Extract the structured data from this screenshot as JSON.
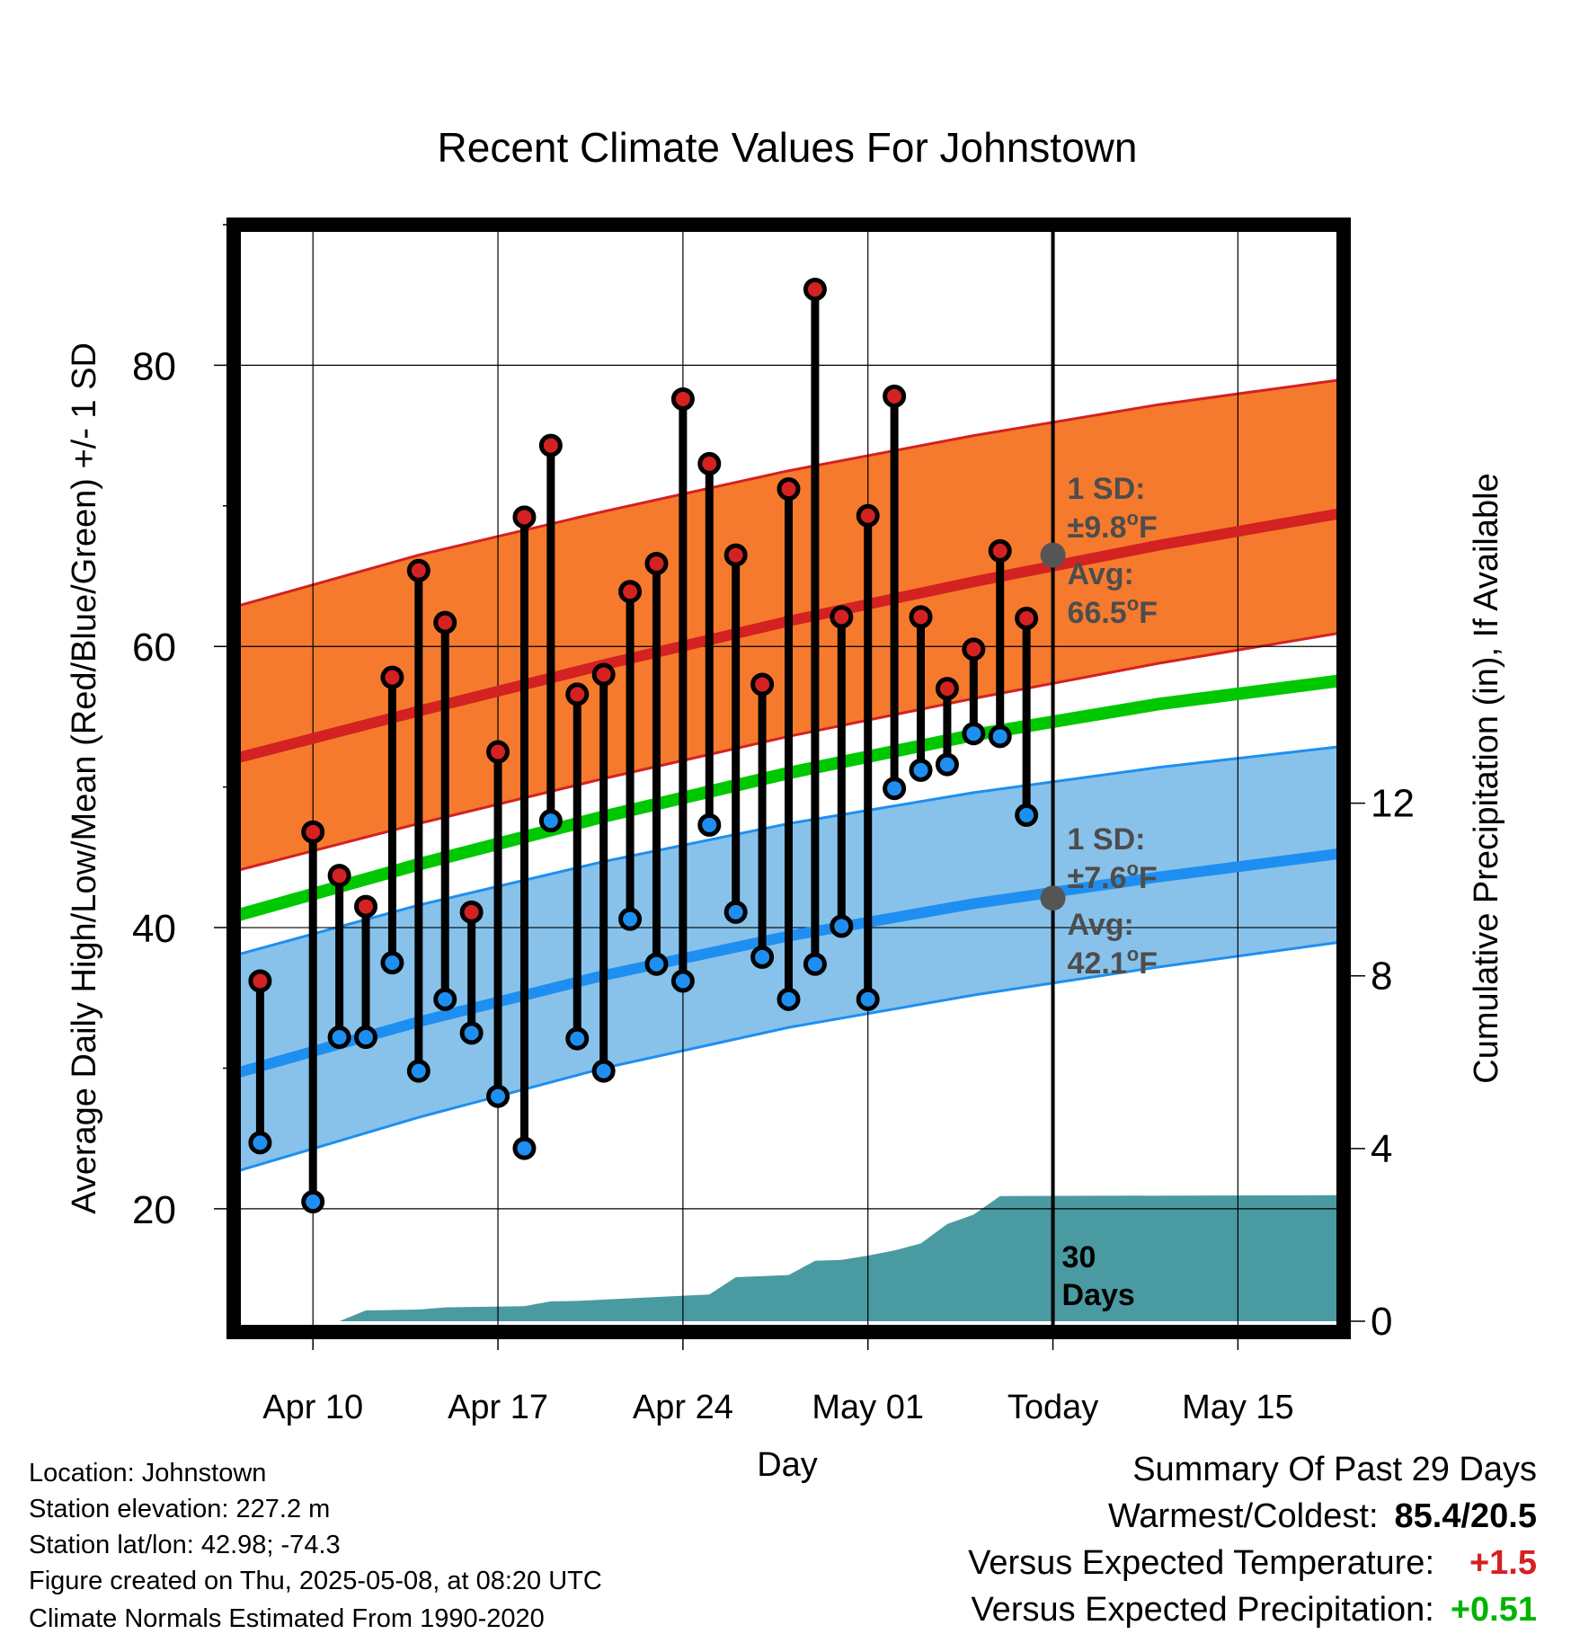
{
  "chart_data": {
    "type": "line",
    "title": "Recent Climate Values For Johnstown",
    "xlabel": "Day",
    "ylabel": "Average Daily High/Low/Mean (Red/Blue/Green) +/- 1 SD",
    "y2label": "Cumulative Precipitation (in), If Available",
    "xlim": [
      "2025-04-07",
      "2025-05-19"
    ],
    "ylim": [
      12,
      90
    ],
    "y2lim": [
      0,
      25.4
    ],
    "x_ticks": [
      {
        "date": "2025-04-10",
        "label": "Apr 10"
      },
      {
        "date": "2025-04-17",
        "label": "Apr 17"
      },
      {
        "date": "2025-04-24",
        "label": "Apr 24"
      },
      {
        "date": "2025-05-01",
        "label": "May 01"
      },
      {
        "date": "2025-05-08",
        "label": "Today"
      },
      {
        "date": "2025-05-15",
        "label": "May 15"
      }
    ],
    "y_ticks": [
      "20",
      "40",
      "60",
      "80"
    ],
    "y_minor_ticks": [
      30,
      50,
      70,
      90
    ],
    "y2_ticks": [
      "0",
      "4",
      "8",
      "12"
    ],
    "grid": true,
    "colors": {
      "high": "#d42121",
      "low": "#1e8ff0",
      "mean": "#00c800",
      "high_band": "#f57a2e",
      "low_band": "#88c2ea",
      "precip": "#4a9aa2",
      "marker": "#555555",
      "annotation": "#4d4d4d"
    },
    "normals": {
      "x": [
        "2025-04-07",
        "2025-04-14",
        "2025-04-21",
        "2025-04-28",
        "2025-05-05",
        "2025-05-12",
        "2025-05-19"
      ],
      "high_avg": [
        52.0,
        55.4,
        58.7,
        61.8,
        64.6,
        67.2,
        69.5
      ],
      "high_sd_upper": [
        62.8,
        66.5,
        69.6,
        72.5,
        75.0,
        77.2,
        79.0
      ],
      "high_sd_lower": [
        44.0,
        47.4,
        50.6,
        53.6,
        56.3,
        58.8,
        61.0
      ],
      "mean": [
        40.8,
        44.5,
        47.9,
        51.0,
        53.7,
        55.9,
        57.6
      ],
      "low_avg": [
        29.6,
        33.3,
        36.6,
        39.4,
        41.7,
        43.6,
        45.3
      ],
      "low_sd_upper": [
        38.0,
        41.6,
        44.7,
        47.4,
        49.6,
        51.4,
        52.9
      ],
      "low_sd_lower": [
        22.6,
        26.5,
        30.0,
        32.9,
        35.2,
        37.2,
        39.0
      ]
    },
    "observations": [
      {
        "date": "2025-04-08",
        "high": 36.2,
        "low": 24.7
      },
      {
        "date": "2025-04-10",
        "high": 46.8,
        "low": 20.5
      },
      {
        "date": "2025-04-11",
        "high": 43.7,
        "low": 32.2
      },
      {
        "date": "2025-04-12",
        "high": 41.5,
        "low": 32.2
      },
      {
        "date": "2025-04-13",
        "high": 57.8,
        "low": 37.5
      },
      {
        "date": "2025-04-14",
        "high": 65.4,
        "low": 29.8
      },
      {
        "date": "2025-04-15",
        "high": 61.7,
        "low": 34.9
      },
      {
        "date": "2025-04-16",
        "high": 41.1,
        "low": 32.5
      },
      {
        "date": "2025-04-17",
        "high": 52.5,
        "low": 28.0
      },
      {
        "date": "2025-04-18",
        "high": 69.2,
        "low": 24.3
      },
      {
        "date": "2025-04-19",
        "high": 74.3,
        "low": 47.6
      },
      {
        "date": "2025-04-20",
        "high": 56.6,
        "low": 32.1
      },
      {
        "date": "2025-04-21",
        "high": 58.0,
        "low": 29.8
      },
      {
        "date": "2025-04-22",
        "high": 63.9,
        "low": 40.6
      },
      {
        "date": "2025-04-23",
        "high": 65.9,
        "low": 37.4
      },
      {
        "date": "2025-04-24",
        "high": 77.6,
        "low": 36.2
      },
      {
        "date": "2025-04-25",
        "high": 73.0,
        "low": 47.3
      },
      {
        "date": "2025-04-26",
        "high": 66.5,
        "low": 41.1
      },
      {
        "date": "2025-04-27",
        "high": 57.3,
        "low": 37.9
      },
      {
        "date": "2025-04-28",
        "high": 71.2,
        "low": 34.9
      },
      {
        "date": "2025-04-29",
        "high": 85.4,
        "low": 37.4
      },
      {
        "date": "2025-04-30",
        "high": 62.1,
        "low": 40.1
      },
      {
        "date": "2025-05-01",
        "high": 69.3,
        "low": 34.9
      },
      {
        "date": "2025-05-02",
        "high": 77.8,
        "low": 49.9
      },
      {
        "date": "2025-05-03",
        "high": 62.1,
        "low": 51.2
      },
      {
        "date": "2025-05-04",
        "high": 57.0,
        "low": 51.6
      },
      {
        "date": "2025-05-05",
        "high": 59.8,
        "low": 53.8
      },
      {
        "date": "2025-05-06",
        "high": 66.8,
        "low": 53.6
      },
      {
        "date": "2025-05-07",
        "high": 62.0,
        "low": 48.0
      }
    ],
    "precip_cumulative": [
      {
        "date": "2025-04-07",
        "value": 0.0
      },
      {
        "date": "2025-04-11",
        "value": 0.0
      },
      {
        "date": "2025-04-12",
        "value": 0.25
      },
      {
        "date": "2025-04-14",
        "value": 0.27
      },
      {
        "date": "2025-04-15",
        "value": 0.32
      },
      {
        "date": "2025-04-18",
        "value": 0.35
      },
      {
        "date": "2025-04-19",
        "value": 0.46
      },
      {
        "date": "2025-04-20",
        "value": 0.47
      },
      {
        "date": "2025-04-22",
        "value": 0.53
      },
      {
        "date": "2025-04-25",
        "value": 0.62
      },
      {
        "date": "2025-04-26",
        "value": 1.02
      },
      {
        "date": "2025-04-28",
        "value": 1.07
      },
      {
        "date": "2025-04-29",
        "value": 1.4
      },
      {
        "date": "2025-04-30",
        "value": 1.42
      },
      {
        "date": "2025-05-01",
        "value": 1.52
      },
      {
        "date": "2025-05-02",
        "value": 1.64
      },
      {
        "date": "2025-05-03",
        "value": 1.8
      },
      {
        "date": "2025-05-04",
        "value": 2.25
      },
      {
        "date": "2025-05-05",
        "value": 2.47
      },
      {
        "date": "2025-05-06",
        "value": 2.9
      },
      {
        "date": "2025-05-19",
        "value": 2.92
      }
    ],
    "today": {
      "date": "2025-05-08",
      "high_avg_value": 66.5,
      "low_avg_value": 42.1,
      "high_sd_text": "1 SD:",
      "high_sd_value": "±9.8°F",
      "high_avg_text": "Avg:",
      "high_avg_label": "66.5°F",
      "low_sd_text": "1 SD:",
      "low_sd_value": "±7.6°F",
      "low_avg_text": "Avg:",
      "low_avg_label": "42.1°F",
      "days_number": "30",
      "days_word": "Days"
    }
  },
  "info": {
    "location": "Location: Johnstown",
    "elevation": "Station elevation: 227.2 m",
    "latlon": "Station lat/lon: 42.98; -74.3",
    "created": "Figure created on Thu, 2025-05-08, at 08:20 UTC",
    "normals": "Climate Normals Estimated From 1990-2020"
  },
  "summary": {
    "title": "Summary Of Past 29 Days",
    "warmest_label": "Warmest/Coldest:",
    "warmest_value": "85.4/20.5",
    "temp_label": "Versus Expected Temperature:",
    "temp_value": "+1.5",
    "temp_color": "#d42121",
    "precip_label": "Versus Expected Precipitation:",
    "precip_value": "+0.51",
    "precip_color": "#00b400"
  }
}
